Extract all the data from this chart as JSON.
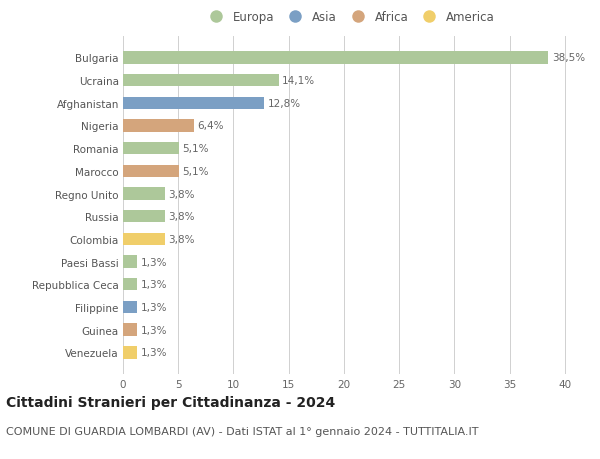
{
  "title": "Cittadini Stranieri per Cittadinanza - 2024",
  "subtitle": "COMUNE DI GUARDIA LOMBARDI (AV) - Dati ISTAT al 1° gennaio 2024 - TUTTITALIA.IT",
  "categories": [
    "Bulgaria",
    "Ucraina",
    "Afghanistan",
    "Nigeria",
    "Romania",
    "Marocco",
    "Regno Unito",
    "Russia",
    "Colombia",
    "Paesi Bassi",
    "Repubblica Ceca",
    "Filippine",
    "Guinea",
    "Venezuela"
  ],
  "values": [
    38.5,
    14.1,
    12.8,
    6.4,
    5.1,
    5.1,
    3.8,
    3.8,
    3.8,
    1.3,
    1.3,
    1.3,
    1.3,
    1.3
  ],
  "labels": [
    "38,5%",
    "14,1%",
    "12,8%",
    "6,4%",
    "5,1%",
    "5,1%",
    "3,8%",
    "3,8%",
    "3,8%",
    "1,3%",
    "1,3%",
    "1,3%",
    "1,3%",
    "1,3%"
  ],
  "continents": [
    "Europa",
    "Europa",
    "Asia",
    "Africa",
    "Europa",
    "Africa",
    "Europa",
    "Europa",
    "America",
    "Europa",
    "Europa",
    "Asia",
    "Africa",
    "America"
  ],
  "continent_colors": {
    "Europa": "#adc89a",
    "Asia": "#7b9fc4",
    "Africa": "#d4a57c",
    "America": "#f0ce6a"
  },
  "legend_order": [
    "Europa",
    "Asia",
    "Africa",
    "America"
  ],
  "xlim": [
    0,
    41
  ],
  "xticks": [
    0,
    5,
    10,
    15,
    20,
    25,
    30,
    35,
    40
  ],
  "background_color": "#ffffff",
  "grid_color": "#d0d0d0",
  "bar_height": 0.55,
  "title_fontsize": 10,
  "subtitle_fontsize": 8,
  "label_fontsize": 7.5,
  "tick_fontsize": 7.5,
  "legend_fontsize": 8.5
}
